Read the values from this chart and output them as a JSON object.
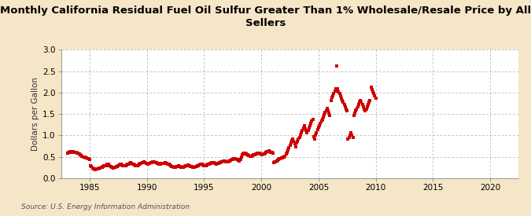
{
  "title": "Monthly California Residual Fuel Oil Sulfur Greater Than 1% Wholesale/Resale Price by All\nSellers",
  "ylabel": "Dollars per Gallon",
  "source": "Source: U.S. Energy Information Administration",
  "bg_color": "#f5e6c8",
  "plot_bg_color": "#ffffff",
  "marker_color": "#cc0000",
  "xlim": [
    1982.5,
    2022.5
  ],
  "ylim": [
    0.0,
    3.0
  ],
  "xticks": [
    1985,
    1990,
    1995,
    2000,
    2005,
    2010,
    2015,
    2020
  ],
  "yticks": [
    0.0,
    0.5,
    1.0,
    1.5,
    2.0,
    2.5,
    3.0
  ],
  "start_year": 1983,
  "start_month": 2,
  "values": [
    0.59,
    0.61,
    0.63,
    0.61,
    0.6,
    0.61,
    0.62,
    0.61,
    0.6,
    0.6,
    0.59,
    0.58,
    0.57,
    0.55,
    0.53,
    0.51,
    0.5,
    0.5,
    0.49,
    0.48,
    0.47,
    0.46,
    0.45,
    0.44,
    0.3,
    0.27,
    0.24,
    0.22,
    0.21,
    0.2,
    0.21,
    0.22,
    0.21,
    0.23,
    0.24,
    0.25,
    0.26,
    0.28,
    0.3,
    0.29,
    0.3,
    0.32,
    0.31,
    0.33,
    0.3,
    0.27,
    0.26,
    0.25,
    0.24,
    0.25,
    0.26,
    0.27,
    0.28,
    0.3,
    0.31,
    0.33,
    0.33,
    0.31,
    0.3,
    0.29,
    0.29,
    0.3,
    0.31,
    0.32,
    0.33,
    0.35,
    0.36,
    0.35,
    0.33,
    0.32,
    0.31,
    0.3,
    0.29,
    0.3,
    0.31,
    0.32,
    0.34,
    0.35,
    0.36,
    0.37,
    0.38,
    0.36,
    0.35,
    0.34,
    0.33,
    0.34,
    0.35,
    0.36,
    0.37,
    0.38,
    0.39,
    0.38,
    0.37,
    0.36,
    0.35,
    0.34,
    0.32,
    0.33,
    0.34,
    0.35,
    0.34,
    0.35,
    0.36,
    0.35,
    0.34,
    0.33,
    0.32,
    0.31,
    0.29,
    0.28,
    0.27,
    0.26,
    0.25,
    0.26,
    0.27,
    0.28,
    0.29,
    0.28,
    0.27,
    0.26,
    0.25,
    0.26,
    0.27,
    0.28,
    0.29,
    0.3,
    0.31,
    0.3,
    0.29,
    0.28,
    0.27,
    0.26,
    0.25,
    0.26,
    0.27,
    0.28,
    0.29,
    0.3,
    0.31,
    0.32,
    0.33,
    0.32,
    0.31,
    0.3,
    0.29,
    0.3,
    0.31,
    0.32,
    0.33,
    0.34,
    0.35,
    0.36,
    0.37,
    0.36,
    0.35,
    0.34,
    0.33,
    0.34,
    0.35,
    0.36,
    0.37,
    0.38,
    0.39,
    0.4,
    0.41,
    0.4,
    0.39,
    0.38,
    0.39,
    0.4,
    0.41,
    0.42,
    0.43,
    0.44,
    0.45,
    0.46,
    0.45,
    0.44,
    0.43,
    0.42,
    0.41,
    0.43,
    0.5,
    0.54,
    0.56,
    0.58,
    0.59,
    0.57,
    0.55,
    0.54,
    0.53,
    0.52,
    0.51,
    0.52,
    0.53,
    0.54,
    0.55,
    0.56,
    0.57,
    0.58,
    0.59,
    0.58,
    0.57,
    0.56,
    0.55,
    0.56,
    0.57,
    0.59,
    0.6,
    0.62,
    0.63,
    0.64,
    0.63,
    0.61,
    0.6,
    0.58,
    0.37,
    0.38,
    0.39,
    0.4,
    0.42,
    0.43,
    0.45,
    0.46,
    0.47,
    0.48,
    0.49,
    0.5,
    0.51,
    0.56,
    0.61,
    0.66,
    0.71,
    0.76,
    0.82,
    0.87,
    0.91,
    0.86,
    0.8,
    0.74,
    0.83,
    0.86,
    0.91,
    0.96,
    1.01,
    1.07,
    1.12,
    1.17,
    1.22,
    1.16,
    1.11,
    1.06,
    1.11,
    1.17,
    1.23,
    1.28,
    1.33,
    1.38,
    0.97,
    0.91,
    1.01,
    1.07,
    1.13,
    1.19,
    1.22,
    1.28,
    1.33,
    1.38,
    1.43,
    1.48,
    1.53,
    1.58,
    1.63,
    1.57,
    1.52,
    1.46,
    1.82,
    1.88,
    1.93,
    1.98,
    2.03,
    2.08,
    2.62,
    2.08,
    2.02,
    1.97,
    1.92,
    1.87,
    1.82,
    1.77,
    1.72,
    1.67,
    1.62,
    1.57,
    0.91,
    0.96,
    1.01,
    1.06,
    1.01,
    0.96,
    1.47,
    1.52,
    1.57,
    1.62,
    1.67,
    1.72,
    1.77,
    1.82,
    1.77,
    1.72,
    1.67,
    1.62,
    1.57,
    1.62,
    1.67,
    1.72,
    1.77,
    1.82,
    2.12,
    2.07,
    2.02,
    1.97,
    1.92,
    1.87
  ]
}
